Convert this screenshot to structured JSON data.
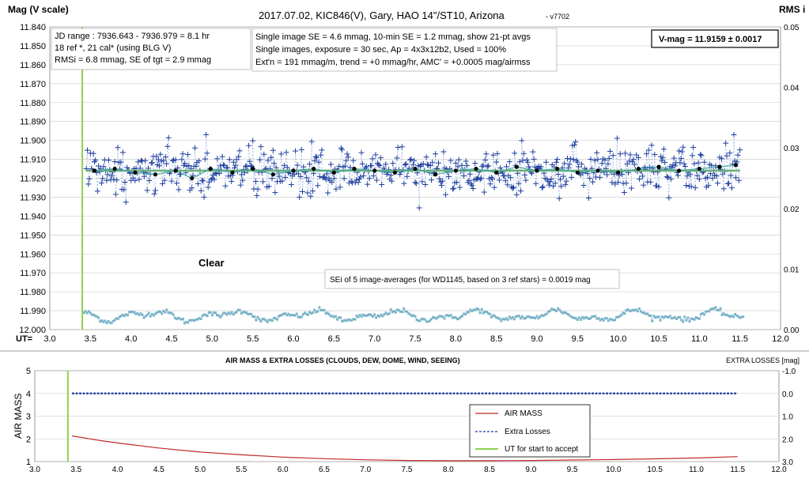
{
  "chart_data": [
    {
      "type": "scatter",
      "title": "2017.07.02,  KIC846(V),  Gary,  HAO 14\"/ST10,  Arizona",
      "title_version": "- v7702",
      "ylabel": "Mag (V scale)",
      "y2label": "RMS i",
      "xlabel": "UT=",
      "xlim": [
        3.0,
        12.0
      ],
      "ylim": [
        11.84,
        12.0
      ],
      "y_inverted": true,
      "y2lim": [
        0.0,
        0.05
      ],
      "x_ticks": [
        "3.0",
        "3.5",
        "4.0",
        "4.5",
        "5.0",
        "5.5",
        "6.0",
        "6.5",
        "7.0",
        "7.5",
        "8.0",
        "8.5",
        "9.0",
        "9.5",
        "10.0",
        "10.5",
        "11.0",
        "11.5",
        "12.0"
      ],
      "y_ticks": [
        "11.840",
        "11.850",
        "11.860",
        "11.870",
        "11.880",
        "11.890",
        "11.900",
        "11.910",
        "11.920",
        "11.930",
        "11.940",
        "11.950",
        "11.960",
        "11.970",
        "11.980",
        "11.990",
        "12.000"
      ],
      "y2_ticks": [
        "0.05",
        "0.04",
        "0.03",
        "0.02",
        "0.01",
        "0.00"
      ],
      "grid": true,
      "annotations": {
        "jd_box": [
          "JD range : 7936.643 - 7936.979  = 8.1 hr",
          "18 ref *, 21 cal* (using BLG V)",
          "RMSi = 6.8 mmag, SE of tgt = 2.9 mmag"
        ],
        "info_box": [
          "Single image SE = 4.6 mmag, 10-min SE = 1.2 mmag, show 21-pt avgs",
          "Single images, exposure = 30 sec, Ap = 4x3x12b2, Used = 100%",
          "Ext'n = 191 mmag/m, trend = +0 mmag/hr, AMC' = +0.0005 mag/airmss"
        ],
        "vmag": "V-mag = 11.9159 ± 0.0017",
        "clear": "Clear",
        "sei": "SEi of 5 image-averages (for WD1145, based on 3 ref stars) = 0.0019 mag"
      },
      "series": [
        {
          "name": "single images",
          "color": "#1a3a9c",
          "scatter_center": 11.916,
          "scatter_sd": 0.006,
          "x_range": [
            3.45,
            11.5
          ]
        },
        {
          "name": "21-pt avgs",
          "color": "#000000",
          "x": [
            3.55,
            3.8,
            4.05,
            4.3,
            4.55,
            4.75,
            4.98,
            5.25,
            5.5,
            5.75,
            6.0,
            6.25,
            6.5,
            6.75,
            7.0,
            7.25,
            7.5,
            7.75,
            8.0,
            8.25,
            8.5,
            8.75,
            9.0,
            9.25,
            9.5,
            9.75,
            10.0,
            10.25,
            10.5,
            10.75,
            11.0,
            11.25,
            11.45
          ],
          "y": [
            11.916,
            11.915,
            11.917,
            11.918,
            11.916,
            11.92,
            11.915,
            11.917,
            11.915,
            11.918,
            11.916,
            11.915,
            11.917,
            11.915,
            11.916,
            11.917,
            11.915,
            11.918,
            11.916,
            11.915,
            11.917,
            11.914,
            11.916,
            11.915,
            11.917,
            11.916,
            11.917,
            11.915,
            11.914,
            11.916,
            11.915,
            11.914,
            11.913
          ]
        },
        {
          "name": "model",
          "color": "#69b07a",
          "x": [
            3.45,
            11.5
          ],
          "y": [
            11.916,
            11.916
          ]
        },
        {
          "name": "RMS i",
          "color": "#7ab3c8",
          "axis": "y2",
          "mean": 0.0023,
          "x_range": [
            3.42,
            11.55
          ]
        }
      ],
      "start_line": {
        "x": 3.4,
        "color": "#8fd14f"
      }
    },
    {
      "type": "line",
      "title": "AIR MASS & EXTRA LOSSES (CLOUDS, DEW, DOME, WIND, SEEING)",
      "ylabel": "AIR MASS",
      "y2label": "EXTRA LOSSES [mag]",
      "xlim": [
        3.0,
        12.0
      ],
      "ylim": [
        1,
        5
      ],
      "y2lim": [
        -1.0,
        3.0
      ],
      "y2_inverted": true,
      "x_ticks": [
        "3.0",
        "3.5",
        "4.0",
        "4.5",
        "5.0",
        "5.5",
        "6.0",
        "6.5",
        "7.0",
        "7.5",
        "8.0",
        "8.5",
        "9.0",
        "9.5",
        "10.0",
        "10.5",
        "11.0",
        "11.5",
        "12.0"
      ],
      "y_ticks": [
        "1",
        "2",
        "3",
        "4",
        "5"
      ],
      "y2_ticks": [
        "-1.0",
        "0.0",
        "1.0",
        "2.0",
        "3.0"
      ],
      "series": [
        {
          "name": "AIR MASS",
          "color": "#c0282b",
          "x": [
            3.45,
            3.75,
            4.0,
            4.5,
            5.0,
            5.5,
            6.0,
            6.5,
            7.0,
            7.5,
            8.0,
            8.5,
            9.0,
            9.5,
            10.0,
            10.5,
            11.0,
            11.5
          ],
          "y": [
            2.13,
            1.95,
            1.82,
            1.6,
            1.42,
            1.3,
            1.2,
            1.13,
            1.08,
            1.05,
            1.04,
            1.04,
            1.05,
            1.07,
            1.09,
            1.12,
            1.16,
            1.22
          ]
        },
        {
          "name": "Extra Losses",
          "color": "#1a3a9c",
          "axis": "y2",
          "x": [
            3.45,
            11.5
          ],
          "y": [
            0.0,
            0.0
          ]
        },
        {
          "name": "UT for start to accept",
          "color": "#8fd14f",
          "x": [
            3.4,
            3.4
          ],
          "y": [
            1,
            5
          ]
        }
      ]
    }
  ]
}
